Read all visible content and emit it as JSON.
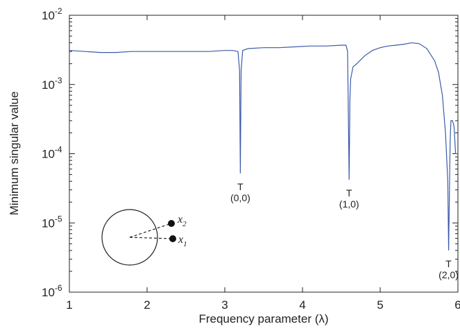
{
  "chart_data": {
    "type": "line",
    "title": "",
    "xlabel": "Frequency parameter (λ)",
    "ylabel": "Minimum singular value",
    "xlim": [
      1,
      6
    ],
    "ylim": [
      1e-06,
      0.01
    ],
    "yscale": "log",
    "grid": false,
    "line_color": "#3a5aa8",
    "x_ticks": [
      1,
      2,
      3,
      4,
      5,
      6
    ],
    "y_ticks": [
      {
        "value": 1e-06,
        "base": "10",
        "exp": "-6"
      },
      {
        "value": 1e-05,
        "base": "10",
        "exp": "-5"
      },
      {
        "value": 0.0001,
        "base": "10",
        "exp": "-4"
      },
      {
        "value": 0.001,
        "base": "10",
        "exp": "-3"
      },
      {
        "value": 0.01,
        "base": "10",
        "exp": "-2"
      }
    ],
    "series": [
      {
        "x": [
          1.0,
          1.2,
          1.4,
          1.6,
          1.8,
          2.0,
          2.2,
          2.4,
          2.6,
          2.8,
          3.0,
          3.1,
          3.17,
          3.19,
          3.2,
          3.21,
          3.23,
          3.3,
          3.5,
          3.7,
          3.9,
          4.1,
          4.3,
          4.5,
          4.56,
          4.58,
          4.6,
          4.61,
          4.62,
          4.65,
          4.7,
          4.8,
          4.9,
          5.0,
          5.1,
          5.2,
          5.3,
          5.4,
          5.5,
          5.6,
          5.7,
          5.75,
          5.8,
          5.84,
          5.87,
          5.88,
          5.9,
          5.91,
          5.93,
          5.95,
          5.97,
          6.0
        ],
        "y": [
          0.0031,
          0.003,
          0.0029,
          0.0029,
          0.003,
          0.003,
          0.003,
          0.003,
          0.003,
          0.003,
          0.0031,
          0.0031,
          0.003,
          0.0016,
          5.2e-05,
          0.0016,
          0.0031,
          0.0033,
          0.0034,
          0.0034,
          0.0035,
          0.0036,
          0.0036,
          0.0037,
          0.0037,
          0.003,
          4.2e-05,
          0.0006,
          0.0012,
          0.0018,
          0.002,
          0.0026,
          0.0031,
          0.0034,
          0.0036,
          0.0037,
          0.0038,
          0.004,
          0.0039,
          0.0033,
          0.0022,
          0.0015,
          0.0007,
          0.0002,
          4e-05,
          4e-06,
          0.00015,
          0.0003,
          0.0003,
          0.00025,
          0.0001,
          0.0001
        ]
      }
    ],
    "annotations": [
      {
        "x": 3.2,
        "y": 5.2e-05,
        "marker": "T",
        "label": "(0,0)"
      },
      {
        "x": 4.6,
        "y": 4.2e-05,
        "marker": "T",
        "label": "(1,0)"
      },
      {
        "x": 5.88,
        "y": 4e-06,
        "marker": "T",
        "label": "(2,0)"
      }
    ],
    "inset": {
      "label_1_main": "x",
      "label_1_sub": "2",
      "label_2_main": "x",
      "label_2_sub": "1"
    }
  }
}
